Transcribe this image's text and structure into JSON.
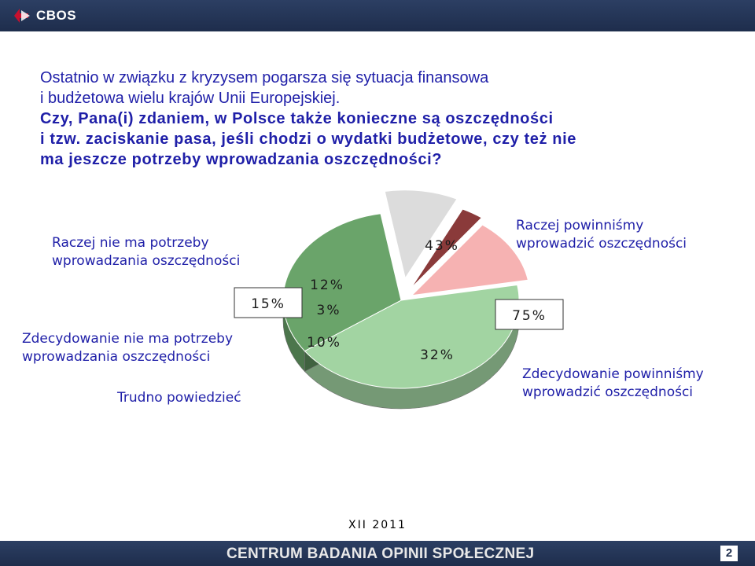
{
  "header": {
    "logo_text": "CBOS"
  },
  "question": {
    "line1": "Ostatnio w związku z kryzysem pogarsza się sytuacja finansowa",
    "line2": "i budżetowa wielu krajów Unii Europejskiej.",
    "bold_line1": "Czy, Pana(i) zdaniem, w Polsce także konieczne są oszczędności",
    "bold_line2": "i tzw. zaciskanie pasa, jeśli chodzi o wydatki budżetowe, czy też nie",
    "bold_line3": "ma jeszcze potrzeby wprowadzania oszczędności?"
  },
  "chart_data": {
    "type": "pie",
    "slices": [
      {
        "name": "Raczej powinniśmy wprowadzić oszczędności",
        "value": 43,
        "label": "43%",
        "color": "#a2d4a2"
      },
      {
        "name": "Zdecydowanie powinniśmy wprowadzić oszczędności",
        "value": 32,
        "label": "32%",
        "color": "#6aa46a"
      },
      {
        "name": "Trudno powiedzieć",
        "value": 10,
        "label": "10%",
        "color": "#dcdcdc"
      },
      {
        "name": "Zdecydowanie nie ma potrzeby wprowadzania oszczędności",
        "value": 3,
        "label": "3%",
        "color": "#8a3a3a"
      },
      {
        "name": "Raczej nie ma potrzeby wprowadzania oszczędności",
        "value": 12,
        "label": "12%",
        "color": "#f6b2b2"
      }
    ],
    "group_labels": [
      {
        "label": "75%",
        "description": "Raczej + Zdecydowanie powinniśmy"
      },
      {
        "label": "15%",
        "description": "Raczej + Zdecydowanie nie ma potrzeby"
      }
    ]
  },
  "labels": {
    "raczej_powinnismy_1": "Raczej powinniśmy",
    "raczej_powinnismy_2": "wprowadzić oszczędności",
    "zdecydowanie_powinnismy_1": "Zdecydowanie powinniśmy",
    "zdecydowanie_powinnismy_2": "wprowadzić oszczędności",
    "raczej_nie_1": "Raczej nie ma potrzeby",
    "raczej_nie_2": "wprowadzania oszczędności",
    "zdecydowanie_nie_1": "Zdecydowanie nie ma potrzeby",
    "zdecydowanie_nie_2": "wprowadzania oszczędności",
    "trudno": "Trudno powiedzieć"
  },
  "footer": {
    "date": "XII 2011",
    "title": "CENTRUM BADANIA OPINII SPOŁECZNEJ",
    "page": "2"
  }
}
